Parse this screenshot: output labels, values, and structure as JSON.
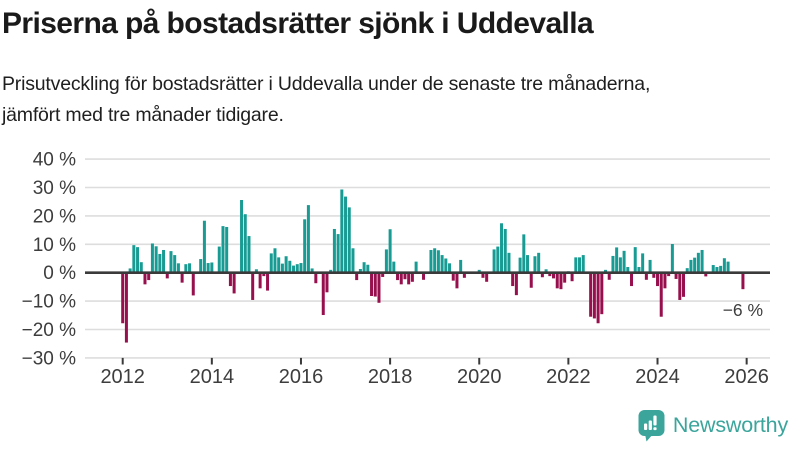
{
  "title": "Priserna på bostadsrätter sjönk i Uddevalla",
  "subtitle": "Prisutveckling för bostadsrätter i Uddevalla under de senaste tre månaderna, jämfört med tre månader tidigare.",
  "annotation": "−6 %",
  "branding": {
    "logo_text": "Newsworthy",
    "logo_icon": "newsworthy-speech-bubble-bar-chart-icon"
  },
  "colors": {
    "positive_bar": "#179b93",
    "negative_bar": "#970f4d",
    "axis_text": "#3d3d3d",
    "gridline": "#dddddd",
    "zero_line": "#3a3a3a",
    "brand_teal": "#3ba59c",
    "title_text": "#1a1a1a"
  },
  "chart_data": {
    "type": "bar",
    "title": "Priserna på bostadsrätter sjönk i Uddevalla",
    "subtitle": "Prisutveckling för bostadsrätter i Uddevalla under de senaste tre månaderna, jämfört med tre månader tidigare.",
    "frequency": "monthly",
    "x_start": "2012-01",
    "x_end": "2025-12",
    "values": [
      -17.8,
      -24.6,
      1.5,
      9.7,
      9.0,
      3.7,
      -4.1,
      -2.6,
      10.3,
      9.3,
      6.6,
      8.0,
      -2.0,
      7.6,
      6.2,
      3.3,
      -3.5,
      3.0,
      3.3,
      -8.0,
      0.3,
      4.8,
      18.3,
      3.4,
      3.6,
      0.3,
      9.2,
      16.4,
      16.1,
      -4.7,
      -7.3,
      0.2,
      25.6,
      20.6,
      12.9,
      -9.6,
      1.2,
      -5.5,
      -1.2,
      -6.3,
      6.8,
      8.6,
      5.4,
      3.2,
      5.8,
      4.2,
      2.5,
      3.0,
      3.4,
      18.8,
      23.8,
      1.5,
      -3.7,
      0.2,
      -14.9,
      -6.9,
      1.0,
      15.4,
      13.6,
      29.3,
      26.8,
      23.0,
      8.6,
      -2.6,
      1.3,
      3.7,
      2.8,
      -8.2,
      -8.4,
      -10.6,
      -1.5,
      8.2,
      15.3,
      3.9,
      -2.6,
      -4.1,
      -2.3,
      -4.1,
      -3.2,
      3.9,
      0.2,
      -2.5,
      0.3,
      8.0,
      8.6,
      7.9,
      6.2,
      5.0,
      3.3,
      -2.8,
      -5.5,
      4.5,
      -1.8,
      0.2,
      0.3,
      0.2,
      1.0,
      -1.8,
      -3.2,
      0.3,
      8.2,
      9.2,
      17.4,
      15.4,
      7.0,
      -4.7,
      -7.9,
      5.3,
      13.5,
      6.2,
      -5.3,
      5.8,
      7.0,
      -1.6,
      1.2,
      -1.2,
      -2.0,
      -5.5,
      -5.8,
      -3.5,
      0.5,
      -3.0,
      5.4,
      5.4,
      6.2,
      0.2,
      -15.5,
      -16.1,
      -17.8,
      -14.6,
      1.0,
      -2.5,
      5.9,
      8.9,
      5.4,
      7.7,
      2.0,
      -4.7,
      9.0,
      2.0,
      6.8,
      -2.5,
      4.5,
      -1.8,
      -4.7,
      -15.5,
      -5.5,
      -1.2,
      10.1,
      -2.2,
      -9.6,
      -8.5,
      1.6,
      4.5,
      5.3,
      7.0,
      8.0,
      -1.3,
      0.2,
      2.7,
      2.0,
      2.4,
      5.1,
      3.9,
      0.2,
      0.1,
      0.2,
      -5.8
    ],
    "last_value_label": "−6 %",
    "y_ticks": [
      "40 %",
      "30 %",
      "20 %",
      "10 %",
      "0 %",
      "−10 %",
      "−20 %",
      "−30 %"
    ],
    "y_tick_values": [
      40,
      30,
      20,
      10,
      0,
      -10,
      -20,
      -30
    ],
    "x_tick_labels": [
      "2012",
      "2014",
      "2016",
      "2018",
      "2020",
      "2022",
      "2024",
      "2026"
    ],
    "ylim": [
      -30,
      40
    ],
    "grid": true,
    "legend": "none"
  }
}
